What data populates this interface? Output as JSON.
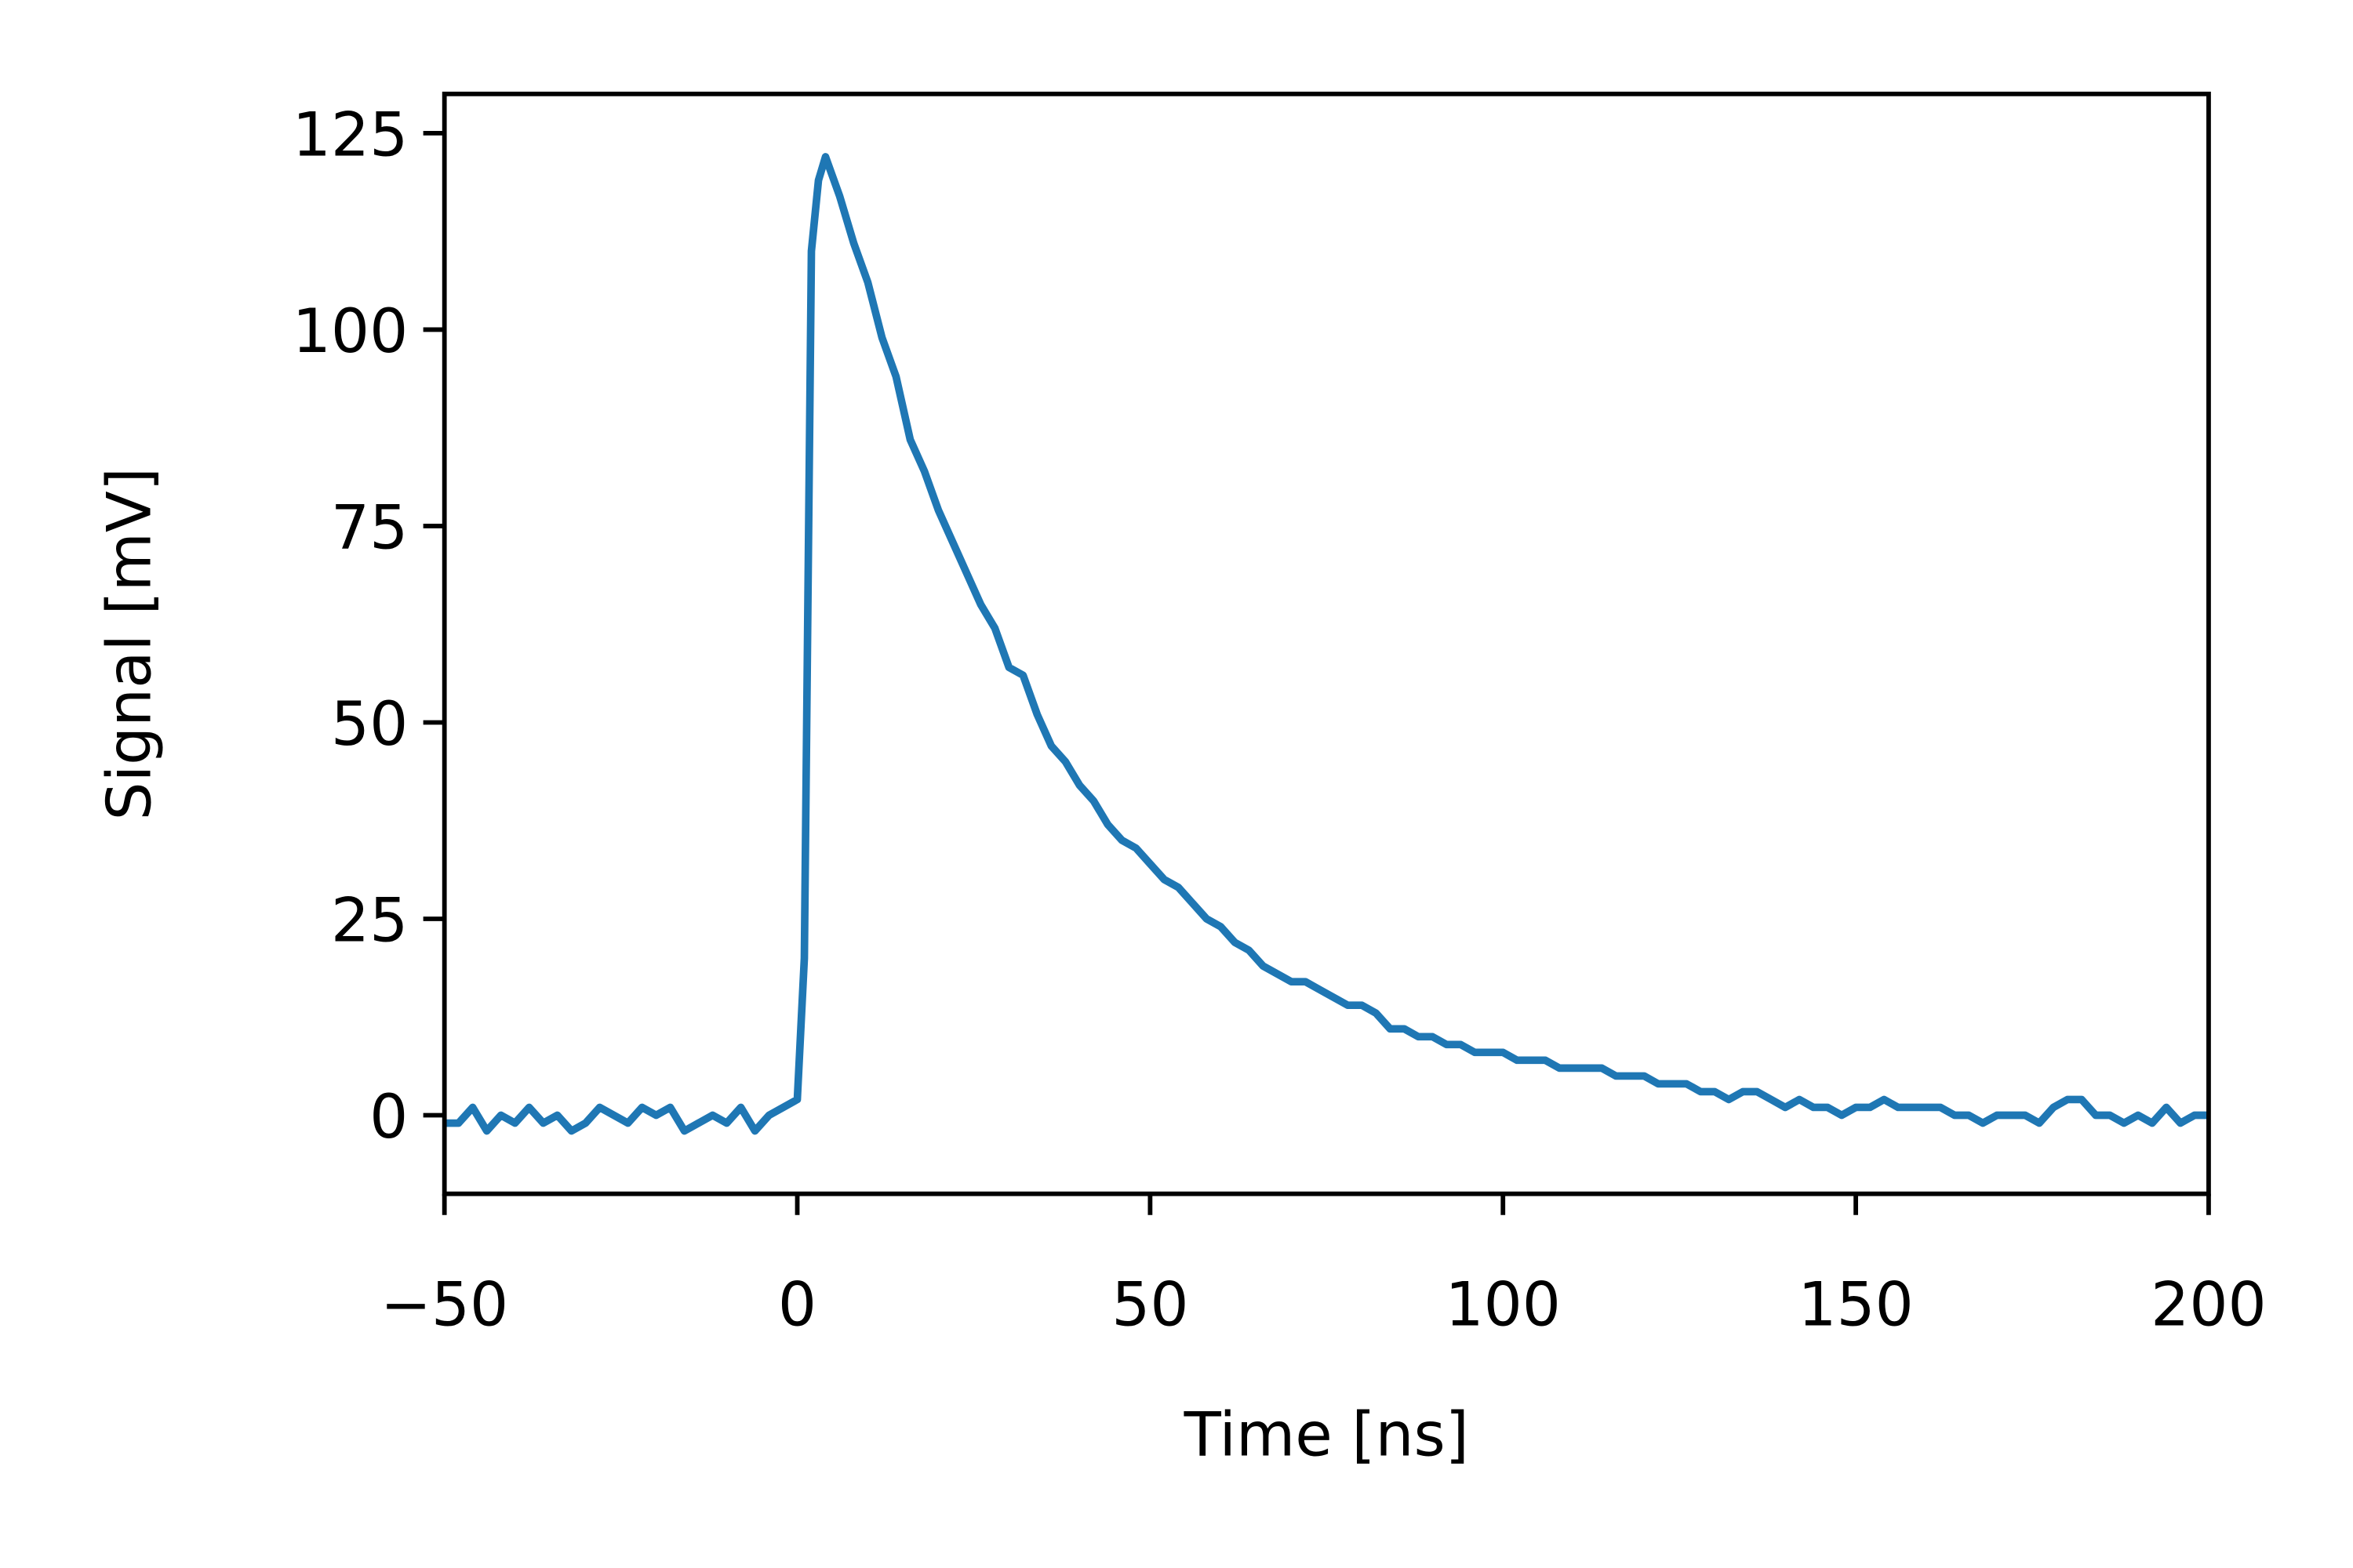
{
  "chart_data": {
    "type": "line",
    "xlabel": "Time [ns]",
    "ylabel": "Signal [mV]",
    "x": [
      -50,
      -48,
      -46,
      -44,
      -42,
      -40,
      -38,
      -36,
      -34,
      -32,
      -30,
      -28,
      -26,
      -24,
      -22,
      -20,
      -18,
      -16,
      -14,
      -12,
      -10,
      -8,
      -6,
      -4,
      -2,
      0,
      1,
      2,
      3,
      4,
      6,
      8,
      10,
      12,
      14,
      16,
      18,
      20,
      22,
      24,
      26,
      28,
      30,
      32,
      34,
      36,
      38,
      40,
      42,
      44,
      46,
      48,
      50,
      52,
      54,
      56,
      58,
      60,
      62,
      64,
      66,
      68,
      70,
      72,
      74,
      76,
      78,
      80,
      82,
      84,
      86,
      88,
      90,
      92,
      94,
      96,
      98,
      100,
      102,
      104,
      106,
      108,
      110,
      112,
      114,
      116,
      118,
      120,
      122,
      124,
      126,
      128,
      130,
      132,
      134,
      136,
      138,
      140,
      142,
      144,
      146,
      148,
      150,
      152,
      154,
      156,
      158,
      160,
      162,
      164,
      166,
      168,
      170,
      172,
      174,
      176,
      178,
      180,
      182,
      184,
      186,
      188,
      190,
      192,
      194,
      196,
      198,
      200
    ],
    "series": [
      {
        "name": "Signal",
        "color": "#1f77b4",
        "values": [
          -1,
          -1,
          1,
          -2,
          0,
          -1,
          1,
          -1,
          0,
          -2,
          -1,
          1,
          0,
          -1,
          1,
          0,
          1,
          -2,
          -1,
          0,
          -1,
          1,
          -2,
          0,
          1,
          2,
          20,
          110,
          119,
          122,
          117,
          111,
          106,
          99,
          94,
          86,
          82,
          77,
          73,
          69,
          65,
          62,
          57,
          56,
          51,
          47,
          45,
          42,
          40,
          37,
          35,
          34,
          32,
          30,
          29,
          27,
          25,
          24,
          22,
          21,
          19,
          18,
          17,
          17,
          16,
          15,
          14,
          14,
          13,
          11,
          11,
          10,
          10,
          9,
          9,
          8,
          8,
          8,
          7,
          7,
          7,
          6,
          6,
          6,
          6,
          5,
          5,
          5,
          4,
          4,
          4,
          3,
          3,
          2,
          3,
          3,
          2,
          1,
          2,
          1,
          1,
          0,
          1,
          1,
          2,
          1,
          1,
          1,
          1,
          0,
          0,
          -1,
          0,
          0,
          0,
          -1,
          1,
          2,
          2,
          0,
          0,
          -1,
          0,
          -1,
          1,
          -1,
          0,
          0
        ]
      }
    ],
    "xlim": [
      -50,
      200
    ],
    "ylim": [
      -10,
      130
    ],
    "xticks": [
      {
        "value": -50,
        "label": "−50"
      },
      0,
      50,
      100,
      150,
      200
    ],
    "yticks": [
      0,
      25,
      50,
      75,
      100,
      125
    ]
  }
}
